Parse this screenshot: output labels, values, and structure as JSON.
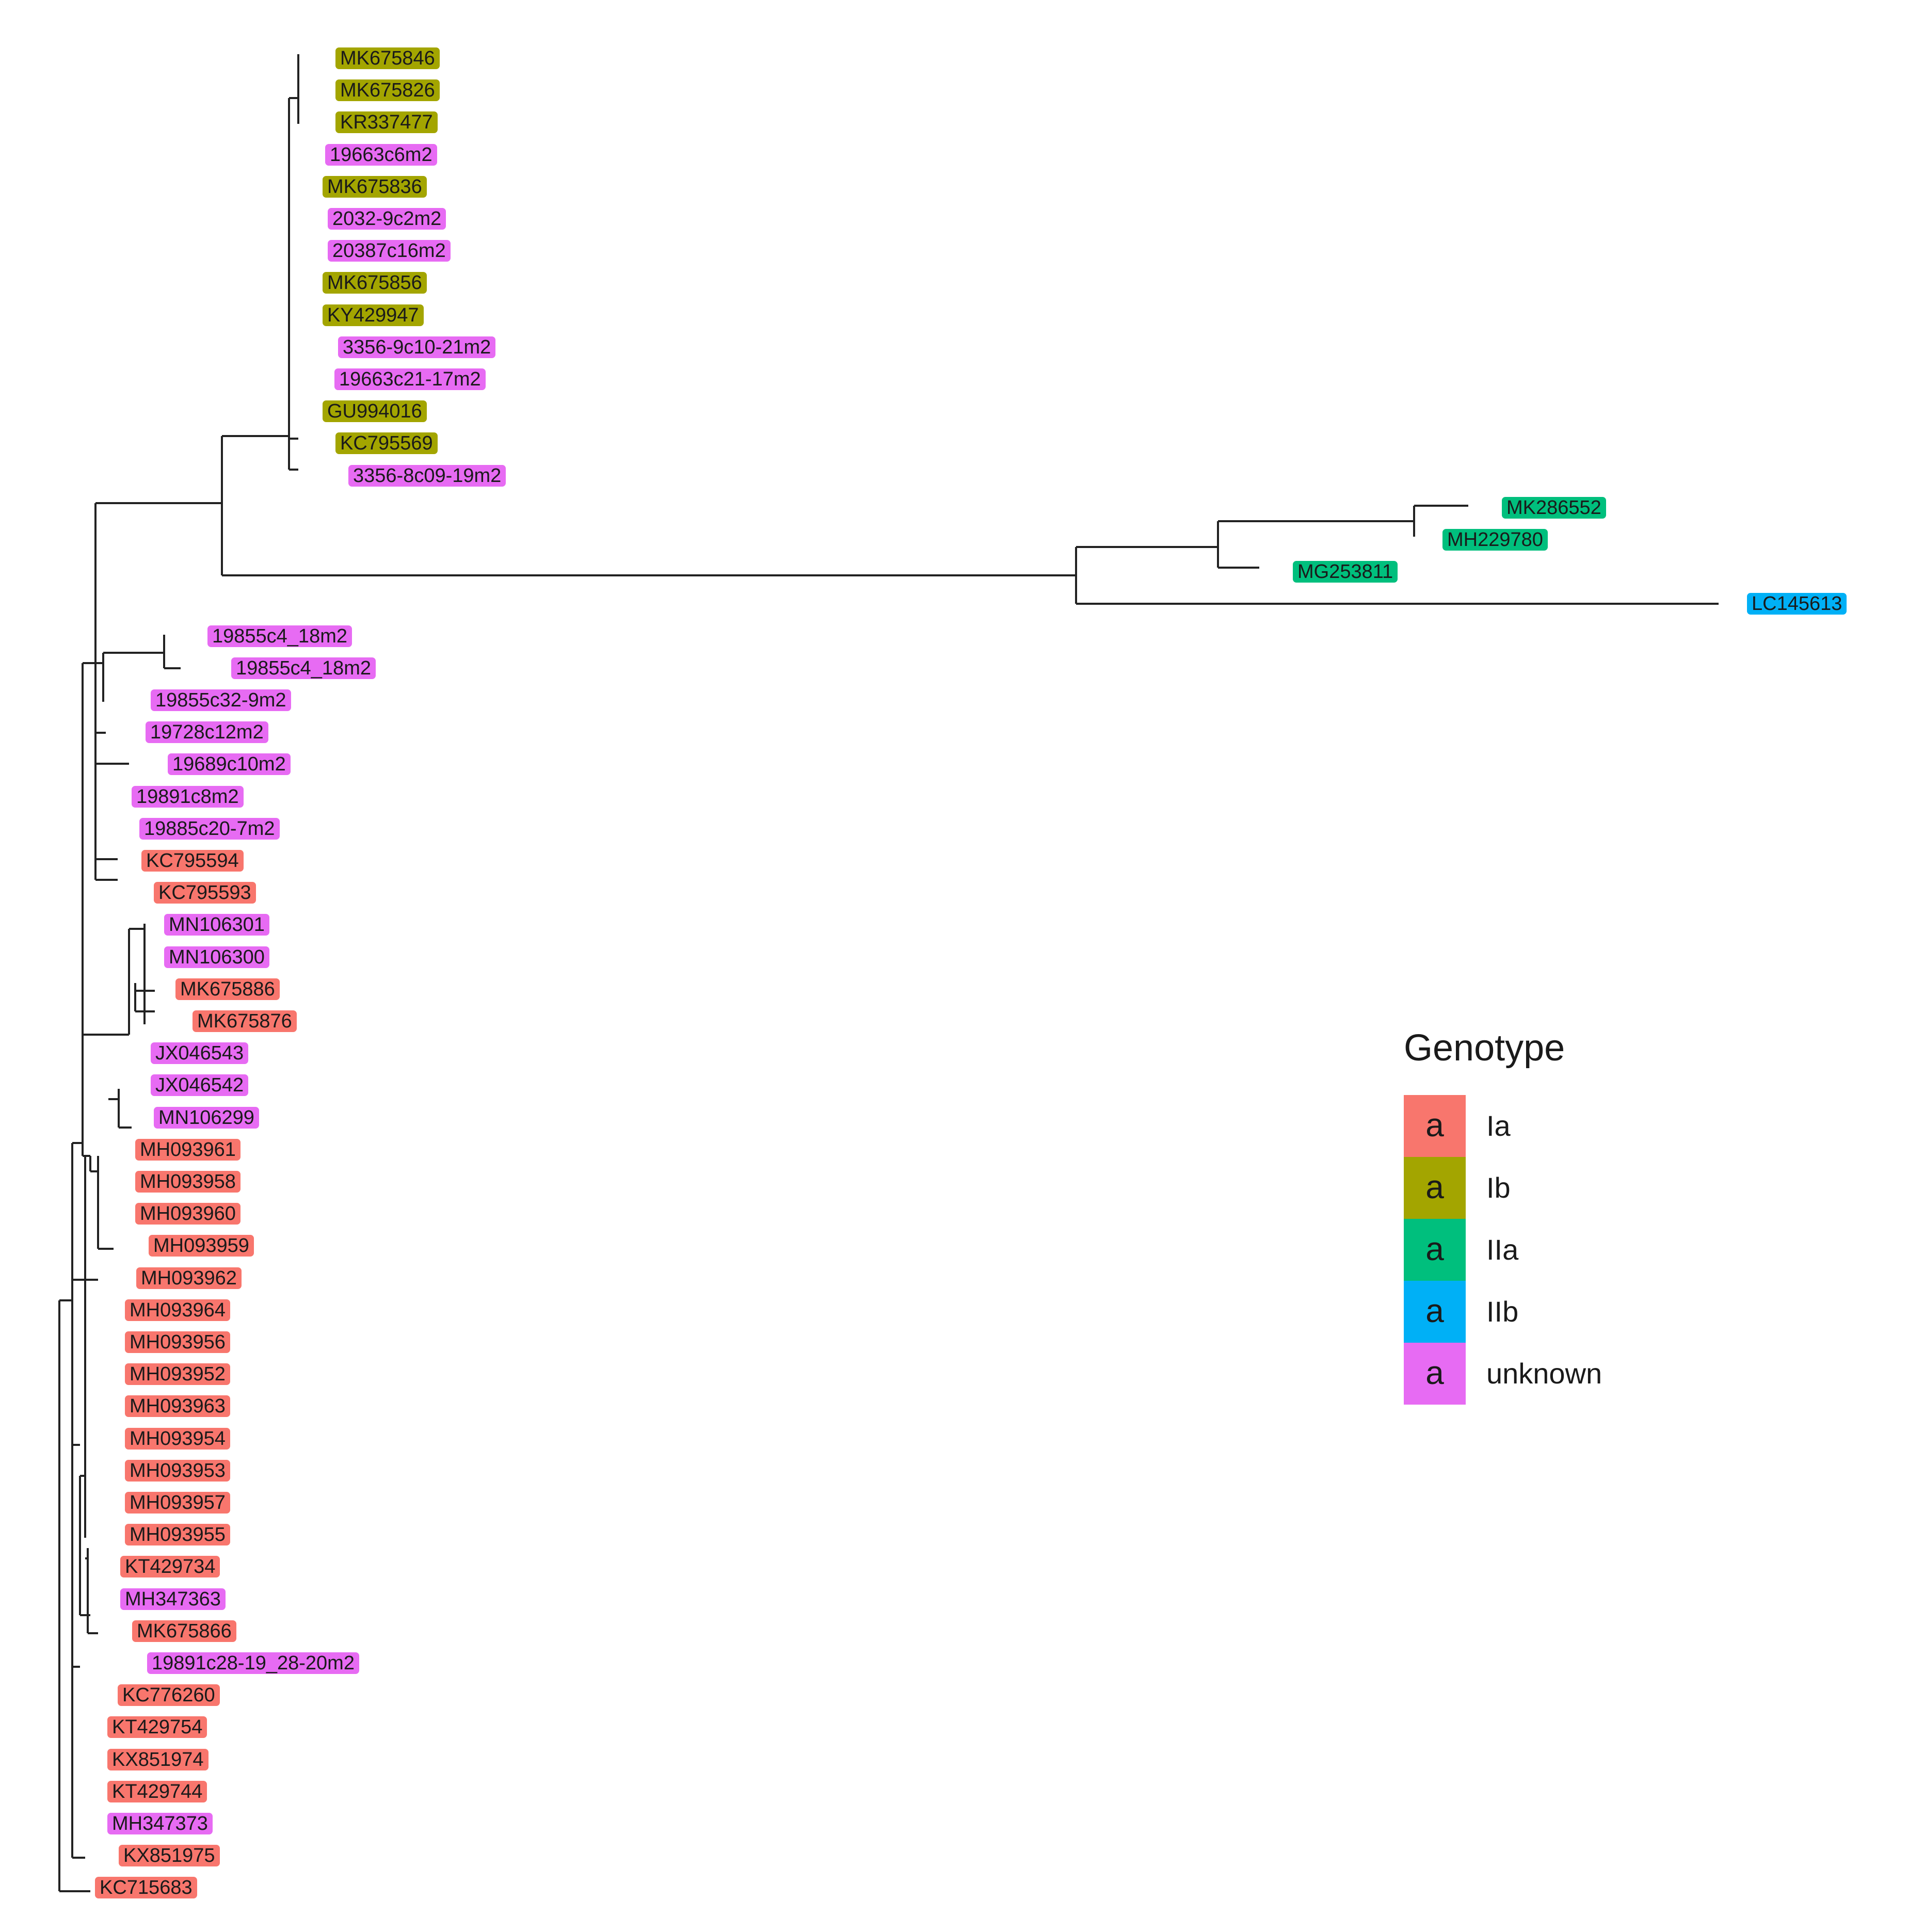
{
  "legend": {
    "title": "Genotype",
    "key_glyph": "a",
    "entries": [
      {
        "id": "Ia",
        "label": "Ia",
        "color": "#F8766D"
      },
      {
        "id": "Ib",
        "label": "Ib",
        "color": "#A3A500"
      },
      {
        "id": "IIa",
        "label": "IIa",
        "color": "#00BF7D"
      },
      {
        "id": "IIb",
        "label": "IIb",
        "color": "#00B0F6"
      },
      {
        "id": "unknown",
        "label": "unknown",
        "color": "#E76BF3"
      }
    ]
  },
  "tips": [
    {
      "label": "MK675846",
      "genotype": "Ib"
    },
    {
      "label": "MK675826",
      "genotype": "Ib"
    },
    {
      "label": "KR337477",
      "genotype": "Ib"
    },
    {
      "label": "19663c6m2",
      "genotype": "unknown"
    },
    {
      "label": "MK675836",
      "genotype": "Ib"
    },
    {
      "label": "2032-9c2m2",
      "genotype": "unknown"
    },
    {
      "label": "20387c16m2",
      "genotype": "unknown"
    },
    {
      "label": "MK675856",
      "genotype": "Ib"
    },
    {
      "label": "KY429947",
      "genotype": "Ib"
    },
    {
      "label": "3356-9c10-21m2",
      "genotype": "unknown"
    },
    {
      "label": "19663c21-17m2",
      "genotype": "unknown"
    },
    {
      "label": "GU994016",
      "genotype": "Ib"
    },
    {
      "label": "KC795569",
      "genotype": "Ib"
    },
    {
      "label": "3356-8c09-19m2",
      "genotype": "unknown"
    },
    {
      "label": "MK286552",
      "genotype": "IIa"
    },
    {
      "label": "MH229780",
      "genotype": "IIa"
    },
    {
      "label": "MG253811",
      "genotype": "IIa"
    },
    {
      "label": "LC145613",
      "genotype": "IIb"
    },
    {
      "label": "19855c4_18m2",
      "genotype": "unknown"
    },
    {
      "label": "19855c4_18m2",
      "genotype": "unknown"
    },
    {
      "label": "19855c32-9m2",
      "genotype": "unknown"
    },
    {
      "label": "19728c12m2",
      "genotype": "unknown"
    },
    {
      "label": "19689c10m2",
      "genotype": "unknown"
    },
    {
      "label": "19891c8m2",
      "genotype": "unknown"
    },
    {
      "label": "19885c20-7m2",
      "genotype": "unknown"
    },
    {
      "label": "KC795594",
      "genotype": "Ia"
    },
    {
      "label": "KC795593",
      "genotype": "Ia"
    },
    {
      "label": "MN106301",
      "genotype": "unknown"
    },
    {
      "label": "MN106300",
      "genotype": "unknown"
    },
    {
      "label": "MK675886",
      "genotype": "Ia"
    },
    {
      "label": "MK675876",
      "genotype": "Ia"
    },
    {
      "label": "JX046543",
      "genotype": "unknown"
    },
    {
      "label": "JX046542",
      "genotype": "unknown"
    },
    {
      "label": "MN106299",
      "genotype": "unknown"
    },
    {
      "label": "MH093961",
      "genotype": "Ia"
    },
    {
      "label": "MH093958",
      "genotype": "Ia"
    },
    {
      "label": "MH093960",
      "genotype": "Ia"
    },
    {
      "label": "MH093959",
      "genotype": "Ia"
    },
    {
      "label": "MH093962",
      "genotype": "Ia"
    },
    {
      "label": "MH093964",
      "genotype": "Ia"
    },
    {
      "label": "MH093956",
      "genotype": "Ia"
    },
    {
      "label": "MH093952",
      "genotype": "Ia"
    },
    {
      "label": "MH093963",
      "genotype": "Ia"
    },
    {
      "label": "MH093954",
      "genotype": "Ia"
    },
    {
      "label": "MH093953",
      "genotype": "Ia"
    },
    {
      "label": "MH093957",
      "genotype": "Ia"
    },
    {
      "label": "MH093955",
      "genotype": "Ia"
    },
    {
      "label": "KT429734",
      "genotype": "Ia"
    },
    {
      "label": "MH347363",
      "genotype": "unknown"
    },
    {
      "label": "MK675866",
      "genotype": "Ia"
    },
    {
      "label": "19891c28-19_28-20m2",
      "genotype": "unknown"
    },
    {
      "label": "KC776260",
      "genotype": "Ia"
    },
    {
      "label": "KT429754",
      "genotype": "Ia"
    },
    {
      "label": "KX851974",
      "genotype": "Ia"
    },
    {
      "label": "KT429744",
      "genotype": "Ia"
    },
    {
      "label": "MH347373",
      "genotype": "unknown"
    },
    {
      "label": "KX851975",
      "genotype": "Ia"
    },
    {
      "label": "KC715683",
      "genotype": "Ia"
    }
  ]
}
